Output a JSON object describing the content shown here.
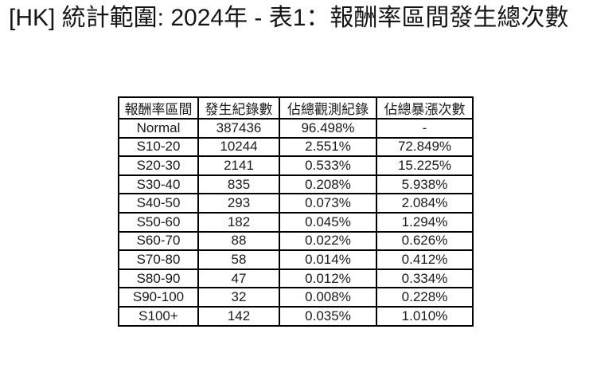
{
  "page": {
    "title": "[HK] 統計範圍: 2024年 - 表1：報酬率區間發生總次數"
  },
  "chart_data": {
    "type": "table",
    "title": "[HK] 統計範圍: 2024年 - 表1：報酬率區間發生總次數",
    "columns": [
      "報酬率區間",
      "發生紀錄數",
      "佔總觀測紀錄",
      "佔總暴漲次數"
    ],
    "rows": [
      [
        "Normal",
        "387436",
        "96.498%",
        "-"
      ],
      [
        "S10-20",
        "10244",
        "2.551%",
        "72.849%"
      ],
      [
        "S20-30",
        "2141",
        "0.533%",
        "15.225%"
      ],
      [
        "S30-40",
        "835",
        "0.208%",
        "5.938%"
      ],
      [
        "S40-50",
        "293",
        "0.073%",
        "2.084%"
      ],
      [
        "S50-60",
        "182",
        "0.045%",
        "1.294%"
      ],
      [
        "S60-70",
        "88",
        "0.022%",
        "0.626%"
      ],
      [
        "S70-80",
        "58",
        "0.014%",
        "0.412%"
      ],
      [
        "S80-90",
        "47",
        "0.012%",
        "0.334%"
      ],
      [
        "S90-100",
        "32",
        "0.008%",
        "0.228%"
      ],
      [
        "S100+",
        "142",
        "0.035%",
        "1.010%"
      ]
    ],
    "layout": {
      "legend": "none",
      "grid": "full-borders",
      "header_position": "top"
    },
    "colors": {
      "border": "#000000",
      "text": "#1a1a1a",
      "background": "#ffffff"
    }
  }
}
